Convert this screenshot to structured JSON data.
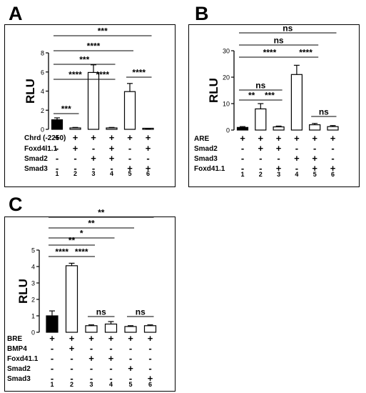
{
  "chart_data": [
    {
      "panel": "A",
      "type": "bar",
      "categories": [
        "1",
        "2",
        "3",
        "4",
        "5",
        "6"
      ],
      "values": [
        1.0,
        0.15,
        5.95,
        0.15,
        3.95,
        0.05
      ],
      "errors": [
        0.2,
        0.05,
        0.8,
        0.05,
        0.85,
        0.02
      ],
      "fills": [
        "#000000",
        "#ffffff",
        "#ffffff",
        "#ffffff",
        "#ffffff",
        "#ffffff"
      ],
      "ylabel": "RLU",
      "ylim": [
        0,
        8
      ],
      "yticks": [
        "0",
        "2",
        "4",
        "6",
        "8"
      ],
      "yticks_values": [
        0,
        2,
        4,
        6,
        8
      ],
      "significance": [
        {
          "from": 1,
          "to": 2,
          "label": "***"
        },
        {
          "from": 1,
          "to": 3,
          "label": "****"
        },
        {
          "from": 3,
          "to": 4,
          "label": "****"
        },
        {
          "from": 1,
          "to": 4,
          "label": "***"
        },
        {
          "from": 5,
          "to": 6,
          "label": "****"
        },
        {
          "from": 1,
          "to": 5,
          "label": "****"
        },
        {
          "from": 1,
          "to": 6,
          "label": "***"
        }
      ],
      "conditions": [
        {
          "label": "Chrd (-2250)",
          "signs": [
            "+",
            "+",
            "+",
            "+",
            "+",
            "+"
          ]
        },
        {
          "label": "Foxd4l1.1",
          "signs": [
            "-",
            "+",
            "-",
            "+",
            "-",
            "+"
          ]
        },
        {
          "label": "Smad2",
          "signs": [
            "-",
            "-",
            "+",
            "+",
            "-",
            "-"
          ]
        },
        {
          "label": "Smad3",
          "signs": [
            "-",
            "-",
            "-",
            "-",
            "+",
            "+"
          ]
        }
      ]
    },
    {
      "panel": "B",
      "type": "bar",
      "categories": [
        "1",
        "2",
        "3",
        "4",
        "5",
        "6"
      ],
      "values": [
        1.0,
        8.0,
        1.2,
        21.0,
        2.0,
        1.3
      ],
      "errors": [
        0.3,
        2.0,
        0.3,
        3.5,
        0.5,
        0.4
      ],
      "fills": [
        "#000000",
        "#ffffff",
        "#ffffff",
        "#ffffff",
        "#ffffff",
        "#ffffff"
      ],
      "ylabel": "RLU",
      "ylim": [
        0,
        30
      ],
      "yticks": [
        "0",
        "10",
        "20",
        "30"
      ],
      "yticks_values": [
        0,
        10,
        20,
        30
      ],
      "significance": [
        {
          "from": 1,
          "to": 2,
          "label": "**"
        },
        {
          "from": 2,
          "to": 3,
          "label": "***"
        },
        {
          "from": 1,
          "to": 3,
          "label": "ns"
        },
        {
          "from": 1,
          "to": 4,
          "label": "****"
        },
        {
          "from": 4,
          "to": 5,
          "label": "****"
        },
        {
          "from": 5,
          "to": 6,
          "label": "ns"
        },
        {
          "from": 1,
          "to": 5,
          "label": "ns"
        },
        {
          "from": 1,
          "to": 6,
          "label": "ns"
        }
      ],
      "conditions": [
        {
          "label": "ARE",
          "signs": [
            "+",
            "+",
            "+",
            "+",
            "+",
            "+"
          ]
        },
        {
          "label": "Smad2",
          "signs": [
            "-",
            "+",
            "+",
            "-",
            "-",
            "-"
          ]
        },
        {
          "label": "Smad3",
          "signs": [
            "-",
            "-",
            "-",
            "+",
            "+",
            "-"
          ]
        },
        {
          "label": "Foxd41.1",
          "signs": [
            "-",
            "-",
            "+",
            "-",
            "+",
            "+"
          ]
        }
      ]
    },
    {
      "panel": "C",
      "type": "bar",
      "categories": [
        "1",
        "2",
        "3",
        "4",
        "5",
        "6"
      ],
      "values": [
        1.0,
        4.05,
        0.4,
        0.5,
        0.35,
        0.4
      ],
      "errors": [
        0.3,
        0.15,
        0.05,
        0.15,
        0.05,
        0.05
      ],
      "fills": [
        "#000000",
        "#ffffff",
        "#ffffff",
        "#ffffff",
        "#ffffff",
        "#ffffff"
      ],
      "ylabel": "RLU",
      "ylim": [
        0,
        5
      ],
      "yticks": [
        "0",
        "1",
        "2",
        "3",
        "4",
        "5"
      ],
      "yticks_values": [
        0,
        1,
        2,
        3,
        4,
        5
      ],
      "significance": [
        {
          "from": 1,
          "to": 2,
          "label": "****"
        },
        {
          "from": 2,
          "to": 3,
          "label": "****"
        },
        {
          "from": 1,
          "to": 3,
          "label": "**"
        },
        {
          "from": 3,
          "to": 4,
          "label": "ns"
        },
        {
          "from": 5,
          "to": 6,
          "label": "ns"
        },
        {
          "from": 1,
          "to": 4,
          "label": "*"
        },
        {
          "from": 1,
          "to": 5,
          "label": "**"
        },
        {
          "from": 1,
          "to": 6,
          "label": "**"
        }
      ],
      "conditions": [
        {
          "label": "BRE",
          "signs": [
            "+",
            "+",
            "+",
            "+",
            "+",
            "+"
          ]
        },
        {
          "label": "BMP4",
          "signs": [
            "-",
            "+",
            "-",
            "-",
            "-",
            "-"
          ]
        },
        {
          "label": "Foxd41.1",
          "signs": [
            "-",
            "-",
            "+",
            "+",
            "-",
            "-"
          ]
        },
        {
          "label": "Smad2",
          "signs": [
            "-",
            "-",
            "-",
            "-",
            "+",
            "-"
          ]
        },
        {
          "label": "Smad3",
          "signs": [
            "-",
            "-",
            "-",
            "-",
            "-",
            "+"
          ]
        }
      ]
    }
  ]
}
